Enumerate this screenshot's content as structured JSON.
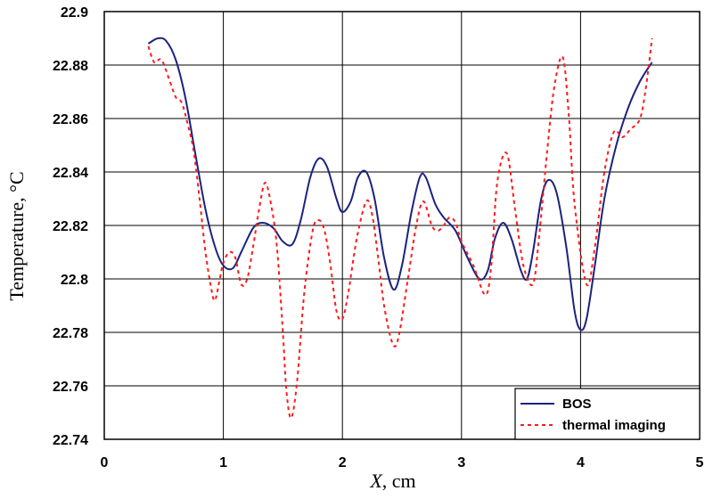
{
  "chart_data": {
    "type": "line",
    "xlabel_var": "X",
    "xlabel_unit": ", cm",
    "ylabel": "Temperature, °C",
    "xlim": [
      0,
      5
    ],
    "ylim": [
      22.74,
      22.9
    ],
    "x_ticks": [
      0,
      1,
      2,
      3,
      4,
      5
    ],
    "y_ticks": [
      22.74,
      22.76,
      22.78,
      22.8,
      22.82,
      22.84,
      22.86,
      22.88,
      22.9
    ],
    "x_tick_labels": [
      "0",
      "1",
      "2",
      "3",
      "4",
      "5"
    ],
    "y_tick_labels": [
      "22.74",
      "22.76",
      "22.78",
      "22.8",
      "22.82",
      "22.84",
      "22.86",
      "22.88",
      "22.9"
    ],
    "grid": true,
    "legend_position": "bottom-right",
    "series": [
      {
        "name": "BOS",
        "color": "#1a237e",
        "style": "solid",
        "points": [
          [
            0.37,
            22.888
          ],
          [
            0.45,
            22.89
          ],
          [
            0.52,
            22.889
          ],
          [
            0.6,
            22.882
          ],
          [
            0.68,
            22.868
          ],
          [
            0.76,
            22.848
          ],
          [
            0.85,
            22.826
          ],
          [
            0.93,
            22.812
          ],
          [
            1.0,
            22.805
          ],
          [
            1.08,
            22.804
          ],
          [
            1.15,
            22.81
          ],
          [
            1.25,
            22.819
          ],
          [
            1.33,
            22.821
          ],
          [
            1.42,
            22.819
          ],
          [
            1.5,
            22.814
          ],
          [
            1.58,
            22.813
          ],
          [
            1.65,
            22.822
          ],
          [
            1.73,
            22.838
          ],
          [
            1.8,
            22.845
          ],
          [
            1.87,
            22.842
          ],
          [
            1.95,
            22.83
          ],
          [
            2.0,
            22.825
          ],
          [
            2.07,
            22.829
          ],
          [
            2.13,
            22.838
          ],
          [
            2.2,
            22.84
          ],
          [
            2.27,
            22.83
          ],
          [
            2.35,
            22.808
          ],
          [
            2.43,
            22.796
          ],
          [
            2.5,
            22.805
          ],
          [
            2.58,
            22.825
          ],
          [
            2.65,
            22.838
          ],
          [
            2.7,
            22.838
          ],
          [
            2.78,
            22.828
          ],
          [
            2.85,
            22.823
          ],
          [
            2.95,
            22.818
          ],
          [
            3.05,
            22.808
          ],
          [
            3.15,
            22.8
          ],
          [
            3.22,
            22.803
          ],
          [
            3.28,
            22.815
          ],
          [
            3.35,
            22.821
          ],
          [
            3.42,
            22.815
          ],
          [
            3.5,
            22.803
          ],
          [
            3.55,
            22.8
          ],
          [
            3.6,
            22.81
          ],
          [
            3.67,
            22.83
          ],
          [
            3.73,
            22.837
          ],
          [
            3.8,
            22.832
          ],
          [
            3.88,
            22.812
          ],
          [
            3.95,
            22.788
          ],
          [
            4.0,
            22.781
          ],
          [
            4.05,
            22.785
          ],
          [
            4.12,
            22.805
          ],
          [
            4.2,
            22.83
          ],
          [
            4.3,
            22.85
          ],
          [
            4.4,
            22.864
          ],
          [
            4.5,
            22.874
          ],
          [
            4.6,
            22.881
          ]
        ]
      },
      {
        "name": "thermal imaging",
        "color": "#ff1a1a",
        "style": "dashed",
        "points": [
          [
            0.37,
            22.887
          ],
          [
            0.42,
            22.881
          ],
          [
            0.48,
            22.882
          ],
          [
            0.55,
            22.874
          ],
          [
            0.6,
            22.868
          ],
          [
            0.65,
            22.866
          ],
          [
            0.7,
            22.858
          ],
          [
            0.75,
            22.848
          ],
          [
            0.8,
            22.83
          ],
          [
            0.85,
            22.81
          ],
          [
            0.9,
            22.796
          ],
          [
            0.93,
            22.792
          ],
          [
            0.97,
            22.8
          ],
          [
            1.0,
            22.806
          ],
          [
            1.05,
            22.81
          ],
          [
            1.1,
            22.808
          ],
          [
            1.15,
            22.798
          ],
          [
            1.2,
            22.8
          ],
          [
            1.25,
            22.812
          ],
          [
            1.3,
            22.826
          ],
          [
            1.35,
            22.836
          ],
          [
            1.4,
            22.828
          ],
          [
            1.45,
            22.812
          ],
          [
            1.5,
            22.78
          ],
          [
            1.53,
            22.758
          ],
          [
            1.57,
            22.748
          ],
          [
            1.62,
            22.762
          ],
          [
            1.68,
            22.795
          ],
          [
            1.75,
            22.818
          ],
          [
            1.8,
            22.822
          ],
          [
            1.85,
            22.818
          ],
          [
            1.9,
            22.805
          ],
          [
            1.95,
            22.788
          ],
          [
            2.0,
            22.785
          ],
          [
            2.05,
            22.795
          ],
          [
            2.12,
            22.815
          ],
          [
            2.2,
            22.829
          ],
          [
            2.25,
            22.824
          ],
          [
            2.3,
            22.808
          ],
          [
            2.35,
            22.79
          ],
          [
            2.42,
            22.776
          ],
          [
            2.47,
            22.778
          ],
          [
            2.55,
            22.8
          ],
          [
            2.62,
            22.82
          ],
          [
            2.68,
            22.829
          ],
          [
            2.75,
            22.82
          ],
          [
            2.8,
            22.818
          ],
          [
            2.85,
            22.82
          ],
          [
            2.9,
            22.823
          ],
          [
            2.95,
            22.821
          ],
          [
            3.0,
            22.814
          ],
          [
            3.1,
            22.805
          ],
          [
            3.2,
            22.794
          ],
          [
            3.25,
            22.805
          ],
          [
            3.3,
            22.836
          ],
          [
            3.38,
            22.847
          ],
          [
            3.45,
            22.826
          ],
          [
            3.52,
            22.805
          ],
          [
            3.6,
            22.798
          ],
          [
            3.65,
            22.815
          ],
          [
            3.72,
            22.848
          ],
          [
            3.78,
            22.872
          ],
          [
            3.85,
            22.883
          ],
          [
            3.9,
            22.862
          ],
          [
            3.95,
            22.828
          ],
          [
            4.05,
            22.798
          ],
          [
            4.12,
            22.812
          ],
          [
            4.2,
            22.84
          ],
          [
            4.28,
            22.855
          ],
          [
            4.35,
            22.853
          ],
          [
            4.42,
            22.856
          ],
          [
            4.5,
            22.86
          ],
          [
            4.55,
            22.872
          ],
          [
            4.6,
            22.89
          ]
        ]
      }
    ]
  }
}
